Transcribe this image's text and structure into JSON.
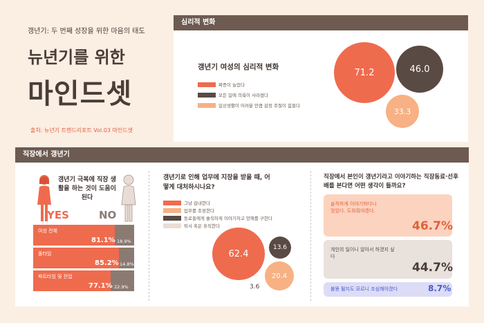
{
  "header": {
    "subtitle": "갱년기: 두 번째 성장을 위한 마음의 태도",
    "title_line1": "뉴년기를 위한",
    "title_line2": "마인드셋",
    "source": "출처: 뉴년기 트렌드리포트 Vol.03 마인드셋"
  },
  "psych": {
    "section_label": "심리적 변화",
    "chart_title": "갱년기 여성의 심리적 변화",
    "legend": [
      "짜증이 늘었다",
      "모든 일에 의욕이 사라졌다",
      "일상생활이 어려울 만큼 감정 조절이 힘들다"
    ],
    "values": [
      "71.2",
      "46.0",
      "33.3"
    ],
    "colors": [
      "#ef6b4e",
      "#5a4a44",
      "#f7b184"
    ]
  },
  "work": {
    "section_label": "직장에서 갱년기",
    "question1": "갱년기 극복에 직장 생활을 하는 것이 도움이 된다",
    "yes_label": "YES",
    "no_label": "NO",
    "rows": [
      {
        "label": "여성 전체",
        "yes": "81.1%",
        "no": "18.9%"
      },
      {
        "label": "풀타임",
        "yes": "85.2%",
        "no": "14.8%"
      },
      {
        "label": "파트타임 및 전업",
        "yes": "77.1%",
        "no": "22.9%"
      }
    ],
    "question2": "갱년기로 인해 업무에 지장을 받을 때, 어떻게 대처하시나요?",
    "legend2": [
      "그냥 감내한다",
      "업무를 조정한다",
      "동료들에게 솔직하게 이야기하고 양해를 구한다",
      "퇴사 혹은 휴직한다"
    ],
    "values2": [
      "62.4",
      "13.6",
      "20.4",
      "3.6"
    ],
    "question3": "직장에서 본인이 갱년기라고 이야기하는 직장동료·선후배를 본다면 어떤 생각이 들까요?",
    "answers": [
      {
        "text": "솔직하게 이야기하다니 멋있다. 도와줘야겠다.",
        "pct": "46.7%"
      },
      {
        "text": "개인의 일이니 알아서 하겠지 싶다",
        "pct": "44.7%"
      },
      {
        "text": "불똥 튈지도 모르니 조심해야겠다",
        "pct": "8.7%"
      }
    ]
  }
}
